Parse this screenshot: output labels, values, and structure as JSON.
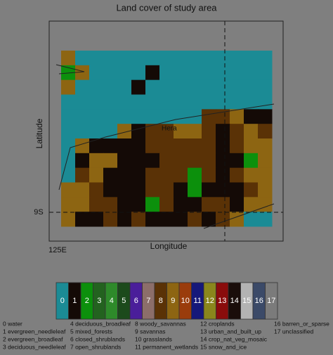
{
  "chart_data": {
    "type": "map",
    "title": "Land cover of study area",
    "x_label": "Longitude",
    "y_label": "Latitude",
    "x_tick_label": "125E",
    "y_tick_label": "9S",
    "place_label": "Hera",
    "grid": [
      [
        9,
        0,
        0,
        0,
        0,
        0,
        0,
        0,
        0,
        0,
        0,
        0,
        0,
        0,
        0
      ],
      [
        2,
        9,
        0,
        0,
        0,
        0,
        1,
        0,
        0,
        0,
        0,
        0,
        0,
        0,
        0
      ],
      [
        9,
        0,
        0,
        0,
        0,
        1,
        0,
        0,
        0,
        0,
        0,
        0,
        0,
        0,
        0
      ],
      [
        0,
        0,
        0,
        0,
        0,
        0,
        0,
        0,
        0,
        0,
        0,
        0,
        0,
        0,
        0
      ],
      [
        0,
        0,
        0,
        0,
        0,
        0,
        0,
        0,
        0,
        0,
        8,
        8,
        9,
        1,
        1
      ],
      [
        0,
        0,
        0,
        0,
        9,
        1,
        8,
        8,
        9,
        9,
        8,
        1,
        8,
        9,
        8
      ],
      [
        0,
        9,
        1,
        1,
        1,
        1,
        8,
        8,
        8,
        8,
        8,
        1,
        8,
        9,
        9
      ],
      [
        0,
        1,
        9,
        9,
        1,
        1,
        1,
        8,
        8,
        8,
        8,
        1,
        1,
        2,
        9
      ],
      [
        0,
        8,
        9,
        1,
        1,
        1,
        8,
        8,
        8,
        2,
        8,
        1,
        8,
        9,
        9
      ],
      [
        9,
        9,
        8,
        1,
        1,
        1,
        8,
        8,
        1,
        2,
        1,
        1,
        1,
        8,
        9
      ],
      [
        9,
        9,
        8,
        8,
        1,
        1,
        2,
        8,
        1,
        1,
        8,
        8,
        1,
        9,
        9
      ],
      [
        9,
        1,
        1,
        8,
        1,
        8,
        1,
        1,
        1,
        8,
        1,
        8,
        9,
        0,
        0
      ]
    ],
    "classes": [
      {
        "code": 0,
        "label": "0 water",
        "color": "#1b8b95"
      },
      {
        "code": 1,
        "label": "1 evergreen_needleleaf",
        "color": "#140a06"
      },
      {
        "code": 2,
        "label": "2 evergreen_broadleaf",
        "color": "#0c900c"
      },
      {
        "code": 3,
        "label": "3 deciduous_needleleaf",
        "color": "#23621f"
      },
      {
        "code": 4,
        "label": "4 deciduous_broadleaf",
        "color": "#2e8a2a"
      },
      {
        "code": 5,
        "label": "5 mixed_forests",
        "color": "#1c4a1c"
      },
      {
        "code": 6,
        "label": "6 closed_shrublands",
        "color": "#4a1e9a"
      },
      {
        "code": 7,
        "label": "7 open_shrublands",
        "color": "#8c6e6a"
      },
      {
        "code": 8,
        "label": "8 woody_savannas",
        "color": "#5a3206"
      },
      {
        "code": 9,
        "label": "9 savannas",
        "color": "#8d6512"
      },
      {
        "code": 10,
        "label": "10 grasslands",
        "color": "#9a3c0c"
      },
      {
        "code": 11,
        "label": "11 permanent_wetlands",
        "color": "#16187a"
      },
      {
        "code": 12,
        "label": "12 croplands",
        "color": "#8a861c"
      },
      {
        "code": 13,
        "label": "13 urban_and_built_up",
        "color": "#8a0c0c"
      },
      {
        "code": 14,
        "label": "14 crop_nat_veg_mosaic",
        "color": "#1a0d0a"
      },
      {
        "code": 15,
        "label": "15 snow_and_ice",
        "color": "#b3b3b3"
      },
      {
        "code": 16,
        "label": "16 barren_or_sparse",
        "color": "#3b4a68"
      },
      {
        "code": 17,
        "label": "17 unclassified",
        "color": "#7b7b7b"
      }
    ]
  }
}
